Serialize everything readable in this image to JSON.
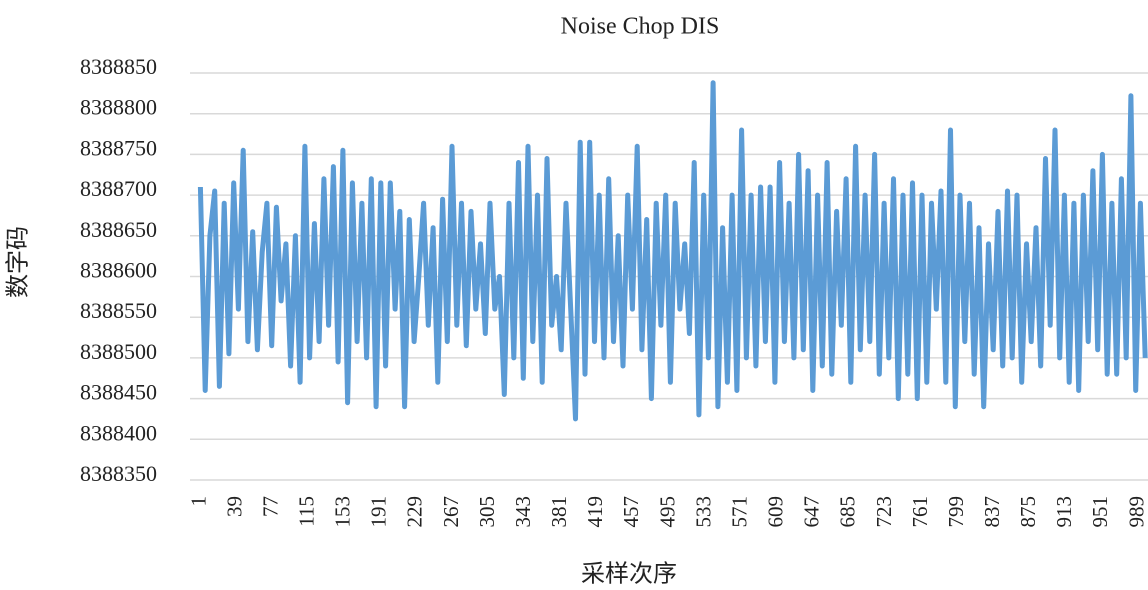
{
  "chart_data": {
    "type": "line",
    "title": "Noise Chop DIS",
    "x_label": "采样次序",
    "y_label": "数字码",
    "color": "#5b9bd5",
    "grid": true,
    "xlim": [
      -10,
      999
    ],
    "ylim": [
      8388350,
      8388850
    ],
    "xticks": [
      1,
      39,
      77,
      115,
      153,
      191,
      229,
      267,
      305,
      343,
      381,
      419,
      457,
      495,
      533,
      571,
      609,
      647,
      685,
      723,
      761,
      799,
      837,
      875,
      913,
      951,
      989
    ],
    "yticks": [
      8388350,
      8388400,
      8388450,
      8388500,
      8388550,
      8388600,
      8388650,
      8388700,
      8388750,
      8388800,
      8388850
    ],
    "x": [
      1,
      6,
      11,
      16,
      21,
      26,
      31,
      36,
      41,
      46,
      51,
      56,
      61,
      66,
      71,
      76,
      81,
      86,
      91,
      96,
      101,
      106,
      111,
      116,
      121,
      126,
      131,
      136,
      141,
      146,
      151,
      156,
      161,
      166,
      171,
      176,
      181,
      186,
      191,
      196,
      201,
      206,
      211,
      216,
      221,
      226,
      231,
      236,
      241,
      246,
      251,
      256,
      261,
      266,
      271,
      276,
      281,
      286,
      291,
      296,
      301,
      306,
      311,
      316,
      321,
      326,
      331,
      336,
      341,
      346,
      351,
      356,
      361,
      366,
      371,
      376,
      381,
      386,
      391,
      396,
      401,
      406,
      411,
      416,
      421,
      426,
      431,
      436,
      441,
      446,
      451,
      456,
      461,
      466,
      471,
      476,
      481,
      486,
      491,
      496,
      501,
      506,
      511,
      516,
      521,
      526,
      531,
      536,
      541,
      546,
      551,
      556,
      561,
      566,
      571,
      576,
      581,
      586,
      591,
      596,
      601,
      606,
      611,
      616,
      621,
      626,
      631,
      636,
      641,
      646,
      651,
      656,
      661,
      666,
      671,
      676,
      681,
      686,
      691,
      696,
      701,
      706,
      711,
      716,
      721,
      726,
      731,
      736,
      741,
      746,
      751,
      756,
      761,
      766,
      771,
      776,
      781,
      786,
      791,
      796,
      801,
      806,
      811,
      816,
      821,
      826,
      831,
      836,
      841,
      846,
      851,
      856,
      861,
      866,
      871,
      876,
      881,
      886,
      891,
      896,
      901,
      906,
      911,
      916,
      921,
      926,
      931,
      936,
      941,
      946,
      951,
      956,
      961,
      966,
      971,
      976,
      981,
      986,
      991,
      996
    ],
    "values": [
      8388710,
      8388460,
      8388650,
      8388705,
      8388465,
      8388690,
      8388505,
      8388715,
      8388560,
      8388755,
      8388520,
      8388655,
      8388510,
      8388630,
      8388690,
      8388515,
      8388685,
      8388570,
      8388640,
      8388490,
      8388650,
      8388470,
      8388760,
      8388500,
      8388665,
      8388520,
      8388720,
      8388540,
      8388735,
      8388495,
      8388755,
      8388445,
      8388715,
      8388520,
      8388690,
      8388500,
      8388720,
      8388440,
      8388715,
      8388490,
      8388715,
      8388560,
      8388680,
      8388440,
      8388670,
      8388520,
      8388600,
      8388690,
      8388540,
      8388660,
      8388470,
      8388695,
      8388520,
      8388760,
      8388540,
      8388690,
      8388515,
      8388680,
      8388560,
      8388640,
      8388530,
      8388690,
      8388560,
      8388600,
      8388455,
      8388690,
      8388500,
      8388740,
      8388475,
      8388760,
      8388520,
      8388700,
      8388470,
      8388745,
      8388540,
      8388600,
      8388510,
      8388690,
      8388560,
      8388425,
      8388765,
      8388480,
      8388765,
      8388520,
      8388700,
      8388500,
      8388720,
      8388520,
      8388650,
      8388490,
      8388700,
      8388560,
      8388760,
      8388510,
      8388670,
      8388450,
      8388690,
      8388540,
      8388700,
      8388470,
      8388690,
      8388560,
      8388640,
      8388530,
      8388740,
      8388430,
      8388700,
      8388500,
      8388838,
      8388440,
      8388660,
      8388470,
      8388700,
      8388460,
      8388780,
      8388500,
      8388700,
      8388490,
      8388710,
      8388520,
      8388710,
      8388470,
      8388740,
      8388520,
      8388690,
      8388500,
      8388750,
      8388510,
      8388730,
      8388460,
      8388700,
      8388490,
      8388740,
      8388480,
      8388680,
      8388540,
      8388720,
      8388470,
      8388760,
      8388510,
      8388700,
      8388520,
      8388750,
      8388480,
      8388690,
      8388500,
      8388720,
      8388450,
      8388700,
      8388480,
      8388715,
      8388450,
      8388700,
      8388470,
      8388690,
      8388560,
      8388705,
      8388470,
      8388780,
      8388440,
      8388700,
      8388520,
      8388690,
      8388480,
      8388660,
      8388440,
      8388640,
      8388510,
      8388680,
      8388490,
      8388705,
      8388500,
      8388700,
      8388470,
      8388640,
      8388520,
      8388660,
      8388490,
      8388745,
      8388540,
      8388780,
      8388500,
      8388700,
      8388470,
      8388690,
      8388460,
      8388700,
      8388520,
      8388730,
      8388510,
      8388750,
      8388480,
      8388690,
      8388480,
      8388720,
      8388500,
      8388822,
      8388460,
      8388690,
      8388500
    ]
  }
}
